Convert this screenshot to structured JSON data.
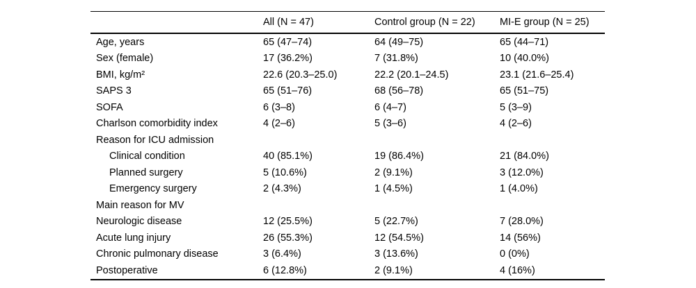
{
  "table": {
    "header": {
      "label": "",
      "col_all": "All (N = 47)",
      "col_control": "Control group (N = 22)",
      "col_mie": "MI-E group (N = 25)"
    },
    "rows": [
      {
        "label": "Age, years",
        "values": [
          "65 (47–74)",
          "64 (49–75)",
          "65 (44–71)"
        ]
      },
      {
        "label": "Sex (female)",
        "values": [
          "17 (36.2%)",
          "7 (31.8%)",
          "10 (40.0%)"
        ]
      },
      {
        "label": "BMI, kg/m²",
        "values": [
          "22.6 (20.3–25.0)",
          "22.2 (20.1–24.5)",
          "23.1 (21.6–25.4)"
        ]
      },
      {
        "label": "SAPS 3",
        "values": [
          "65 (51–76)",
          "68 (56–78)",
          "65 (51–75)"
        ]
      },
      {
        "label": "SOFA",
        "values": [
          "6 (3–8)",
          "6 (4–7)",
          "5 (3–9)"
        ]
      },
      {
        "label": "Charlson comorbidity index",
        "values": [
          "4 (2–6)",
          "5 (3–6)",
          "4 (2–6)"
        ]
      },
      {
        "label": "Reason for ICU admission",
        "values": [
          "",
          "",
          ""
        ]
      },
      {
        "label": "Clinical condition",
        "values": [
          "40 (85.1%)",
          "19 (86.4%)",
          "21 (84.0%)"
        ]
      },
      {
        "label": "Planned surgery",
        "values": [
          "5 (10.6%)",
          "2 (9.1%)",
          "3 (12.0%)"
        ]
      },
      {
        "label": "Emergency surgery",
        "values": [
          "2 (4.3%)",
          "1 (4.5%)",
          "1 (4.0%)"
        ]
      },
      {
        "label": "Main reason for MV",
        "values": [
          "",
          "",
          ""
        ]
      },
      {
        "label": "Neurologic disease",
        "values": [
          "12 (25.5%)",
          "5 (22.7%)",
          "7 (28.0%)"
        ]
      },
      {
        "label": "Acute lung injury",
        "values": [
          "26 (55.3%)",
          "12 (54.5%)",
          "14 (56%)"
        ]
      },
      {
        "label": "Chronic pulmonary disease",
        "values": [
          "3 (6.4%)",
          "3 (13.6%)",
          "0 (0%)"
        ]
      },
      {
        "label": "Postoperative",
        "values": [
          "6 (12.8%)",
          "2 (9.1%)",
          "4 (16%)"
        ]
      }
    ]
  }
}
